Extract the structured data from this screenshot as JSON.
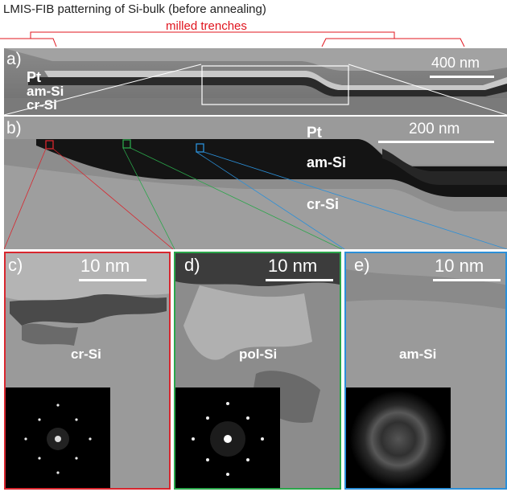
{
  "title": "LMIS-FIB patterning of Si-bulk (before annealing)",
  "trench_label": "milled trenches",
  "colors": {
    "trench_bracket": "#e0141e",
    "roi_red": "#d8262e",
    "roi_green": "#2aa64a",
    "roi_blue": "#2b8fd8"
  },
  "panel_a": {
    "letter": "a)",
    "layers": [
      "Pt",
      "am-Si",
      "cr-Si"
    ],
    "scale": "400 nm"
  },
  "panel_b": {
    "letter": "b)",
    "layers": [
      "Pt",
      "am-Si",
      "cr-Si"
    ],
    "scale": "200 nm"
  },
  "panel_c": {
    "letter": "c)",
    "scale": "10 nm",
    "material": "cr-Si",
    "fft_pattern": "sharp spots"
  },
  "panel_d": {
    "letter": "d)",
    "scale": "10 nm",
    "material": "pol-Si",
    "fft_pattern": "spots with ring"
  },
  "panel_e": {
    "letter": "e)",
    "scale": "10 nm",
    "material": "am-Si",
    "fft_pattern": "diffuse rings"
  }
}
